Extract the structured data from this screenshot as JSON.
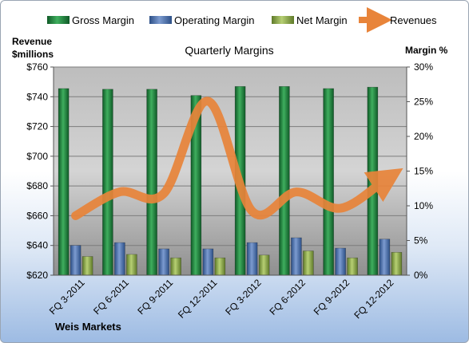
{
  "chart_data": {
    "type": "bar",
    "title": "Quarterly Margins",
    "categories": [
      "FQ 3-2011",
      "FQ 6-2011",
      "FQ 9-2011",
      "FQ 12-2011",
      "FQ 3-2012",
      "FQ 6-2012",
      "FQ 9-2012",
      "FQ 12-2012"
    ],
    "series": [
      {
        "name": "Gross Margin",
        "axis": "right",
        "type": "bar",
        "values": [
          26.9,
          26.8,
          26.8,
          25.9,
          27.2,
          27.2,
          26.9,
          27.1
        ]
      },
      {
        "name": "Operating Margin",
        "axis": "right",
        "type": "bar",
        "values": [
          4.3,
          4.7,
          3.8,
          3.8,
          4.7,
          5.4,
          3.9,
          5.2
        ]
      },
      {
        "name": "Net Margin",
        "axis": "right",
        "type": "bar",
        "values": [
          2.7,
          3.0,
          2.5,
          2.5,
          2.9,
          3.5,
          2.5,
          3.3
        ]
      },
      {
        "name": "Revenues",
        "axis": "left",
        "type": "line",
        "values": [
          660,
          676,
          675,
          737,
          663,
          676,
          665,
          684
        ]
      }
    ],
    "left_axis": {
      "title_line1": "Revenue",
      "title_line2": "$millions",
      "ylim": [
        620,
        760
      ],
      "ticks": [
        "$620",
        "$640",
        "$660",
        "$680",
        "$700",
        "$720",
        "$740",
        "$760"
      ]
    },
    "right_axis": {
      "title": "Margin %",
      "ylim": [
        0,
        30
      ],
      "ticks": [
        "0%",
        "5%",
        "10%",
        "15%",
        "20%",
        "25%",
        "30%"
      ]
    },
    "legend_position": "top",
    "grid": true,
    "footer": "Weis Markets",
    "colors": {
      "Gross Margin": "#1f7a3a",
      "Operating Margin": "#4a6fa8",
      "Net Margin": "#8aa84a",
      "Revenues": "#e8843a"
    }
  }
}
